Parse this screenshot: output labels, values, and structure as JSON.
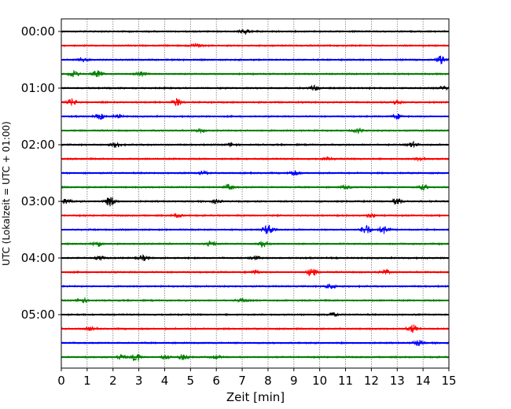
{
  "chart_data": {
    "type": "line",
    "title": "",
    "xlabel": "Zeit  [min]",
    "ylabel": "UTC (Lokalzeit = UTC + 01:00)",
    "xlim": [
      0,
      15
    ],
    "xticks": [
      "0",
      "1",
      "2",
      "3",
      "4",
      "5",
      "6",
      "7",
      "8",
      "9",
      "10",
      "11",
      "12",
      "13",
      "14",
      "15"
    ],
    "yticks": [
      {
        "row": 0,
        "label": "00:00"
      },
      {
        "row": 4,
        "label": "01:00"
      },
      {
        "row": 8,
        "label": "02:00"
      },
      {
        "row": 12,
        "label": "03:00"
      },
      {
        "row": 16,
        "label": "04:00"
      },
      {
        "row": 20,
        "label": "05:00"
      }
    ],
    "grid": "vertical dotted at each minute",
    "colors": [
      "#000000",
      "#ff0000",
      "#0000ff",
      "#008000"
    ],
    "row_interval_min": 15,
    "traces": [
      {
        "start": "00:00",
        "events": [
          [
            7.1,
            3
          ]
        ]
      },
      {
        "start": "00:15",
        "events": [
          [
            5.2,
            3
          ]
        ]
      },
      {
        "start": "00:30",
        "events": [
          [
            0.8,
            2
          ],
          [
            14.7,
            5
          ]
        ]
      },
      {
        "start": "00:45",
        "events": [
          [
            0.5,
            4
          ],
          [
            1.4,
            4
          ],
          [
            3.1,
            3
          ]
        ]
      },
      {
        "start": "01:00",
        "events": [
          [
            9.8,
            3
          ],
          [
            14.8,
            2
          ]
        ]
      },
      {
        "start": "01:15",
        "events": [
          [
            0.4,
            4
          ],
          [
            4.5,
            4
          ],
          [
            13,
            2
          ]
        ]
      },
      {
        "start": "01:30",
        "events": [
          [
            1.5,
            3
          ],
          [
            2.2,
            2
          ],
          [
            13,
            3
          ]
        ]
      },
      {
        "start": "01:45",
        "events": [
          [
            5.4,
            2
          ],
          [
            11.5,
            3
          ]
        ]
      },
      {
        "start": "02:00",
        "events": [
          [
            2.1,
            3
          ],
          [
            6.6,
            2
          ],
          [
            13.6,
            3
          ]
        ]
      },
      {
        "start": "02:15",
        "events": [
          [
            10.3,
            2
          ],
          [
            13.9,
            2
          ]
        ]
      },
      {
        "start": "02:30",
        "events": [
          [
            5.5,
            2
          ],
          [
            9,
            3
          ]
        ]
      },
      {
        "start": "02:45",
        "events": [
          [
            6.5,
            3
          ],
          [
            11,
            2
          ],
          [
            14,
            3
          ]
        ]
      },
      {
        "start": "03:00",
        "events": [
          [
            0.2,
            3
          ],
          [
            1.9,
            6
          ],
          [
            6,
            2
          ],
          [
            13,
            4
          ]
        ]
      },
      {
        "start": "03:15",
        "events": [
          [
            4.5,
            2
          ],
          [
            12,
            2
          ]
        ]
      },
      {
        "start": "03:30",
        "events": [
          [
            8,
            6
          ],
          [
            11.8,
            6
          ],
          [
            12.5,
            5
          ]
        ]
      },
      {
        "start": "03:45",
        "events": [
          [
            1.4,
            3
          ],
          [
            5.8,
            3
          ],
          [
            7.8,
            4
          ]
        ]
      },
      {
        "start": "04:00",
        "events": [
          [
            1.5,
            2
          ],
          [
            3.2,
            3
          ],
          [
            7.5,
            2
          ]
        ]
      },
      {
        "start": "04:15",
        "events": [
          [
            7.5,
            2
          ],
          [
            9.7,
            5
          ],
          [
            12.5,
            3
          ]
        ]
      },
      {
        "start": "04:30",
        "events": [
          [
            10.4,
            3
          ]
        ]
      },
      {
        "start": "04:45",
        "events": [
          [
            0.8,
            3
          ],
          [
            7,
            2
          ]
        ]
      },
      {
        "start": "05:00",
        "events": [
          [
            10.5,
            2
          ]
        ]
      },
      {
        "start": "05:15",
        "events": [
          [
            1.1,
            2
          ],
          [
            13.6,
            5
          ]
        ]
      },
      {
        "start": "05:30",
        "events": [
          [
            13.8,
            3
          ]
        ]
      },
      {
        "start": "05:45",
        "events": [
          [
            2.3,
            3
          ],
          [
            2.9,
            5
          ],
          [
            4,
            2
          ],
          [
            4.7,
            3
          ],
          [
            6,
            2
          ]
        ]
      }
    ]
  }
}
